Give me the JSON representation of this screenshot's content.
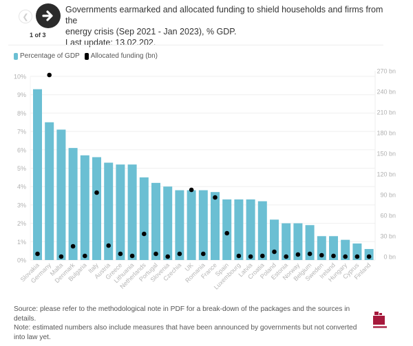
{
  "navigation": {
    "prev_icon": "arrow-left-icon",
    "next_icon": "arrow-right-icon",
    "page_indicator": "1 of 3"
  },
  "header": {
    "title_line1": "Governments earmarked and allocated funding to shield households and firms from the",
    "title_line2": "energy crisis (Sep 2021 - Jan 2023), % GDP.",
    "last_update": "Last update: 13.02.202."
  },
  "legend": {
    "items": [
      {
        "label": "Percentage of GDP",
        "color": "#6bbfd3"
      },
      {
        "label": "Allocated funding (bn)",
        "color": "#000000"
      }
    ]
  },
  "chart_data": {
    "type": "bar",
    "title": "Governments earmarked and allocated funding to shield households and firms from the energy crisis (Sep 2021 - Jan 2023), % GDP.",
    "xlabel": "",
    "ylabel": "Percentage of GDP",
    "y2label": "Allocated funding (bn)",
    "ylim": [
      0,
      10
    ],
    "y2lim": [
      0,
      270
    ],
    "yticks": [
      "0%",
      "1%",
      "2%",
      "3%",
      "4%",
      "5%",
      "6%",
      "7%",
      "8%",
      "9%",
      "10%"
    ],
    "y2ticks": [
      "0 bn",
      "30 bn",
      "60 bn",
      "90 bn",
      "120 bn",
      "150 bn",
      "180 bn",
      "210 bn",
      "240 bn",
      "270 bn"
    ],
    "grid": true,
    "legend_position": "top-left",
    "categories": [
      "Slovakia",
      "Germany",
      "Malta",
      "Denmark",
      "Bulgaria",
      "Italy",
      "Austria",
      "Greece",
      "Lithuania",
      "Netherlands",
      "Portugal",
      "Slovenia",
      "Czechia",
      "UK",
      "Romania",
      "France",
      "Spain",
      "Luxembourg",
      "Latvia",
      "Croatia",
      "Poland",
      "Estonia",
      "Norway",
      "Belgium",
      "Sweden",
      "Ireland",
      "Hungary",
      "Cyprus",
      "Finland"
    ],
    "series": [
      {
        "name": "Percentage of GDP",
        "type": "bar",
        "axis": "left",
        "color": "#6bbfd3",
        "values": [
          9.3,
          7.5,
          7.1,
          6.1,
          5.7,
          5.6,
          5.3,
          5.2,
          5.2,
          4.5,
          4.2,
          4.0,
          3.8,
          3.8,
          3.8,
          3.7,
          3.3,
          3.3,
          3.3,
          3.2,
          2.2,
          2.0,
          2.0,
          1.9,
          1.3,
          1.3,
          1.1,
          0.9,
          0.6
        ]
      },
      {
        "name": "Allocated funding (bn)",
        "type": "scatter",
        "axis": "right",
        "color": "#000000",
        "values": [
          4,
          264,
          0,
          15,
          1,
          93,
          16,
          4,
          1,
          33,
          4,
          0,
          4,
          97,
          4,
          86,
          34,
          1,
          0,
          1,
          7,
          0,
          3,
          4,
          2,
          1,
          0,
          0,
          0
        ]
      }
    ]
  },
  "footer": {
    "source": "Source: please refer to the methodological note in PDF for a break-down of the packages and the sources in details.",
    "note": "Note: estimated numbers also include measures that have been announced by governments but not converted into law yet."
  },
  "branding": {
    "logo_icon": "bruegel-logo-icon",
    "logo_text": "bruegel",
    "color": "#a6193c"
  }
}
